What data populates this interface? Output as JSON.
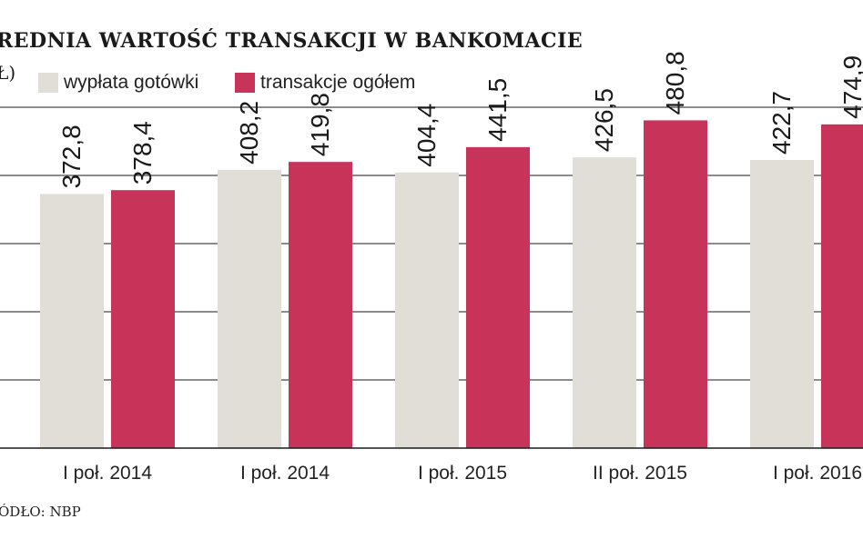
{
  "title": "REDNIA WARTOŚĆ TRANSAKCJI W BANKOMACIE",
  "unit_label": "Ł)",
  "source": "ÓDŁO: NBP",
  "colors": {
    "series_0": "#e0ded6",
    "series_1": "#c8335a",
    "grid": "#1a1a1a"
  },
  "chart_data": {
    "type": "bar",
    "categories": [
      "I poł. 2014",
      "I poł. 2014",
      "I poł. 2015",
      "II poł. 2015",
      "I poł. 2016"
    ],
    "series": [
      {
        "name": "wypłata gotówki",
        "values": [
          372.8,
          408.2,
          404.4,
          426.5,
          422.7
        ],
        "labels": [
          "372,8",
          "408,2",
          "404,4",
          "426,5",
          "422,7"
        ]
      },
      {
        "name": "transakcje ogółem",
        "values": [
          378.4,
          419.8,
          441.5,
          480.8,
          474.9
        ],
        "labels": [
          "378,4",
          "419,8",
          "441,5",
          "480,8",
          "474,9"
        ]
      }
    ],
    "ylim": [
      0,
      500
    ],
    "grid": true,
    "legend": "top"
  }
}
